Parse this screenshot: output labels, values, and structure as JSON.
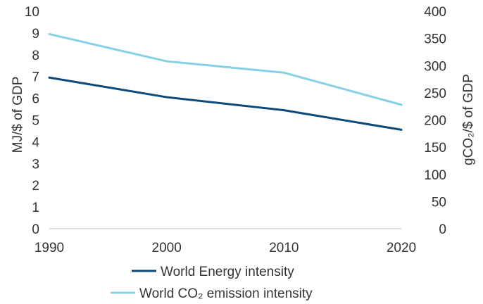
{
  "chart_data": {
    "type": "line",
    "x": [
      1990,
      2000,
      2010,
      2020
    ],
    "xticks": [
      "1990",
      "2000",
      "2010",
      "2020"
    ],
    "xlim": [
      1990,
      2020
    ],
    "ylabel_left": "MJ/$ of GDP",
    "ylabel_right": "gCO₂/$ of GDP",
    "ylim_left": [
      0,
      10
    ],
    "ylim_right": [
      0,
      400
    ],
    "yticks_left": [
      "0",
      "1",
      "2",
      "3",
      "4",
      "5",
      "6",
      "7",
      "8",
      "9",
      "10"
    ],
    "yticks_right": [
      "0",
      "50",
      "100",
      "150",
      "200",
      "250",
      "300",
      "350",
      "400"
    ],
    "grid": false,
    "legend_position": "bottom",
    "series": [
      {
        "name": "World Energy intensity",
        "axis": "left",
        "color": "#0b4a7a",
        "values": [
          6.95,
          6.05,
          5.45,
          4.55
        ]
      },
      {
        "name": "World CO₂ emission intensity",
        "axis": "right",
        "color": "#86d0e8",
        "values": [
          358,
          308,
          287,
          228
        ]
      }
    ]
  }
}
